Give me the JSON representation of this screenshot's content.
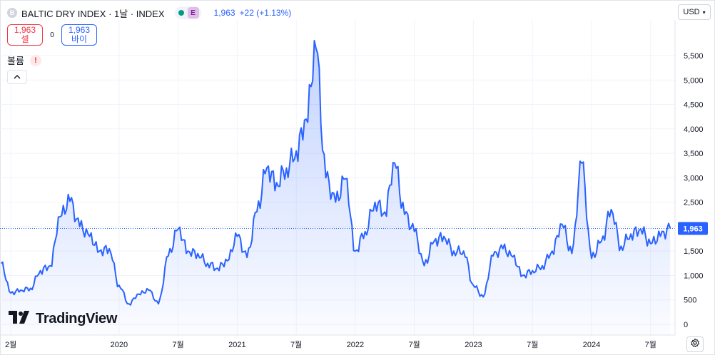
{
  "legend": {
    "symbol_letter": "B",
    "title": "BALTIC DRY INDEX · 1날 · INDEX",
    "badge": "E",
    "last_value": "1,963",
    "change": "+22 (+1.13%)"
  },
  "trade": {
    "sell_price": "1,963",
    "sell_label": "셀",
    "spread": "0",
    "buy_price": "1,963",
    "buy_label": "바이"
  },
  "volume": {
    "label": "볼륨",
    "warning": "!"
  },
  "currency": {
    "label": "USD"
  },
  "branding": {
    "name": "TradingView"
  },
  "colors": {
    "line": "#2962ff",
    "sell": "#f23645",
    "buy": "#2962ff",
    "market_open": "#089981"
  },
  "chart_data": {
    "type": "area",
    "title": "",
    "xlabel": "",
    "ylabel": "",
    "ylim": [
      0,
      6200
    ],
    "y_ticks": [
      "0",
      "500",
      "1,000",
      "1,500",
      "2,000",
      "2,500",
      "3,000",
      "3,500",
      "4,000",
      "4,500",
      "5,000",
      "5,500"
    ],
    "x_ticks": [
      "2월",
      "2020",
      "7월",
      "2021",
      "7월",
      "2022",
      "7월",
      "2023",
      "7월",
      "2024",
      "7월"
    ],
    "x_tick_dates": [
      "2019-02",
      "2020-01",
      "2020-07",
      "2021-01",
      "2021-07",
      "2022-01",
      "2022-07",
      "2023-01",
      "2023-07",
      "2024-01",
      "2024-07"
    ],
    "last_price_label": "1,963",
    "last_price": 1963,
    "series": [
      {
        "x": [
          "2019-01",
          "2019-02",
          "2019-03",
          "2019-04",
          "2019-05",
          "2019-06",
          "2019-07",
          "2019-08",
          "2019-09",
          "2019-10",
          "2019-11",
          "2019-12",
          "2020-01",
          "2020-02",
          "2020-03",
          "2020-04",
          "2020-05",
          "2020-06",
          "2020-07",
          "2020-08",
          "2020-09",
          "2020-10",
          "2020-11",
          "2020-12",
          "2021-01",
          "2021-02",
          "2021-03",
          "2021-04",
          "2021-05",
          "2021-06",
          "2021-07",
          "2021-08",
          "2021-09",
          "2021-10",
          "2021-11",
          "2021-12",
          "2022-01",
          "2022-02",
          "2022-03",
          "2022-04",
          "2022-05",
          "2022-06",
          "2022-07",
          "2022-08",
          "2022-09",
          "2022-10",
          "2022-11",
          "2022-12",
          "2023-01",
          "2023-02",
          "2023-03",
          "2023-04",
          "2023-05",
          "2023-06",
          "2023-07",
          "2023-08",
          "2023-09",
          "2023-10",
          "2023-11",
          "2023-12",
          "2024-01",
          "2024-02",
          "2024-03",
          "2024-04",
          "2024-05",
          "2024-06",
          "2024-07",
          "2024-08",
          "2024-09"
        ],
        "values": [
          1250,
          640,
          700,
          740,
          1100,
          1200,
          2200,
          2520,
          2000,
          1800,
          1500,
          1550,
          800,
          420,
          620,
          700,
          420,
          1400,
          1950,
          1500,
          1450,
          1250,
          1150,
          1300,
          1800,
          1370,
          2300,
          3200,
          2900,
          3200,
          3550,
          4200,
          5650,
          3000,
          2500,
          2980,
          1500,
          1900,
          2500,
          2300,
          3300,
          2250,
          1900,
          1200,
          1700,
          1800,
          1500,
          1500,
          800,
          560,
          1400,
          1550,
          1380,
          1000,
          1100,
          1200,
          1500,
          2050,
          1450,
          3300,
          1350,
          1700,
          2350,
          1600,
          1850,
          1950,
          1650,
          1800,
          1963
        ]
      }
    ]
  }
}
